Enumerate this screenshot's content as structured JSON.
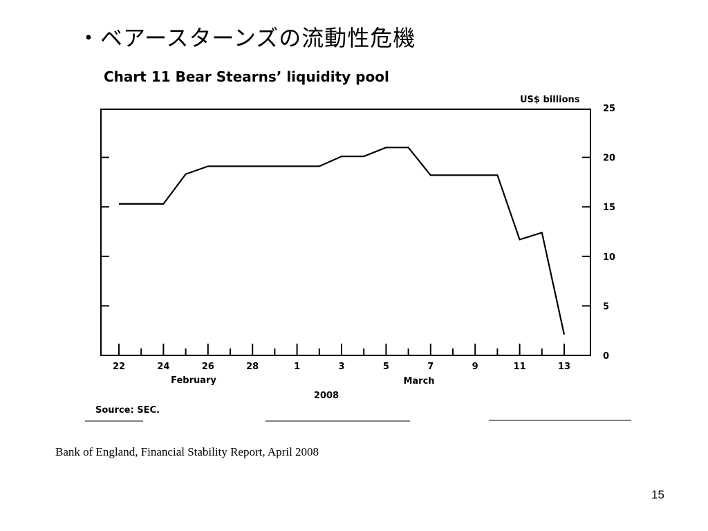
{
  "slide": {
    "title": "・ベアースターンズの流動性危機",
    "caption": "Bank of England, Financial Stability Report, April 2008",
    "page_number": "15"
  },
  "chart_data": {
    "type": "line",
    "title": "Chart 11  Bear Stearns’ liquidity pool",
    "ylabel": "US$ billions",
    "ylim": [
      0,
      25
    ],
    "yticks": [
      0,
      5,
      10,
      15,
      20,
      25
    ],
    "x_tick_labels": [
      "22",
      "24",
      "26",
      "28",
      "1",
      "3",
      "5",
      "7",
      "9",
      "11",
      "13"
    ],
    "month_labels": [
      "February",
      "March"
    ],
    "year_label": "2008",
    "source": "Source: SEC.",
    "grid": false,
    "series": [
      {
        "x": [
          "2008-02-22",
          "2008-02-23",
          "2008-02-24",
          "2008-02-25",
          "2008-02-26",
          "2008-02-27",
          "2008-02-28",
          "2008-02-29",
          "2008-03-01",
          "2008-03-02",
          "2008-03-03",
          "2008-03-04",
          "2008-03-05",
          "2008-03-06",
          "2008-03-07",
          "2008-03-08",
          "2008-03-09",
          "2008-03-10",
          "2008-03-11",
          "2008-03-12",
          "2008-03-13"
        ],
        "values": [
          15.3,
          15.3,
          15.3,
          18.3,
          19.1,
          19.1,
          19.1,
          19.1,
          19.1,
          19.1,
          20.1,
          20.1,
          21.0,
          21.0,
          18.2,
          18.2,
          18.2,
          18.2,
          11.7,
          12.4,
          2.1
        ]
      }
    ]
  }
}
